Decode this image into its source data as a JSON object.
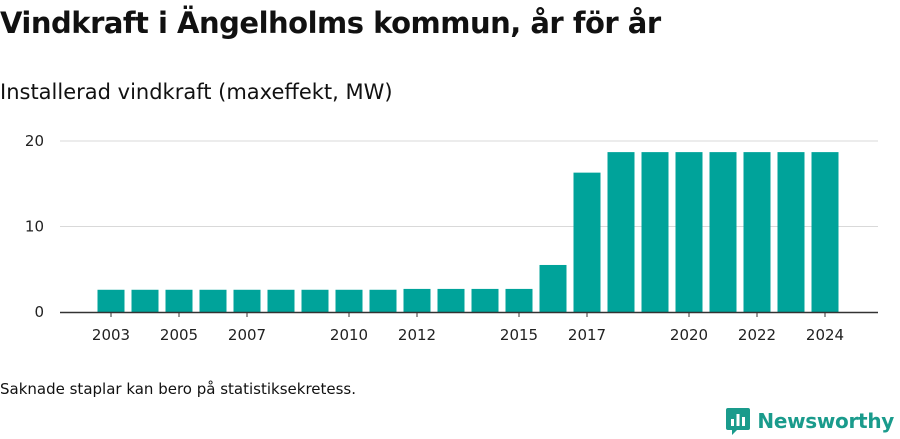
{
  "header": {
    "title": "Vindkraft i Ängelholms kommun, år för år",
    "subtitle": "Installerad vindkraft (maxeffekt, MW)"
  },
  "footnote": "Saknade staplar kan bero på statistiksekretess.",
  "brand": {
    "name": "Newsworthy",
    "icon": "newsworthy-logo-icon",
    "color": "#1a9b8c"
  },
  "colors": {
    "bar": "#00a39a",
    "grid": "#d9d9d9",
    "axis": "#333333"
  },
  "chart_data": {
    "type": "bar",
    "title": "Vindkraft i Ängelholms kommun, år för år",
    "subtitle": "Installerad vindkraft (maxeffekt, MW)",
    "categories": [
      "2003",
      "2004",
      "2005",
      "2006",
      "2007",
      "2008",
      "2009",
      "2010",
      "2011",
      "2012",
      "2013",
      "2014",
      "2015",
      "2016",
      "2017",
      "2018",
      "2019",
      "2020",
      "2021",
      "2022",
      "2023",
      "2024"
    ],
    "values": [
      2.6,
      2.6,
      2.6,
      2.6,
      2.6,
      2.6,
      2.6,
      2.6,
      2.6,
      2.7,
      2.7,
      2.7,
      2.7,
      5.5,
      16.3,
      18.7,
      18.7,
      18.7,
      18.7,
      18.7,
      18.7,
      18.7
    ],
    "x_tick_labels": [
      "2003",
      "2005",
      "2007",
      "2010",
      "2012",
      "2015",
      "2017",
      "2020",
      "2022",
      "2024"
    ],
    "y_ticks": [
      0,
      10,
      20
    ],
    "ylim": [
      0,
      20
    ],
    "grid": true,
    "legend": "none"
  }
}
